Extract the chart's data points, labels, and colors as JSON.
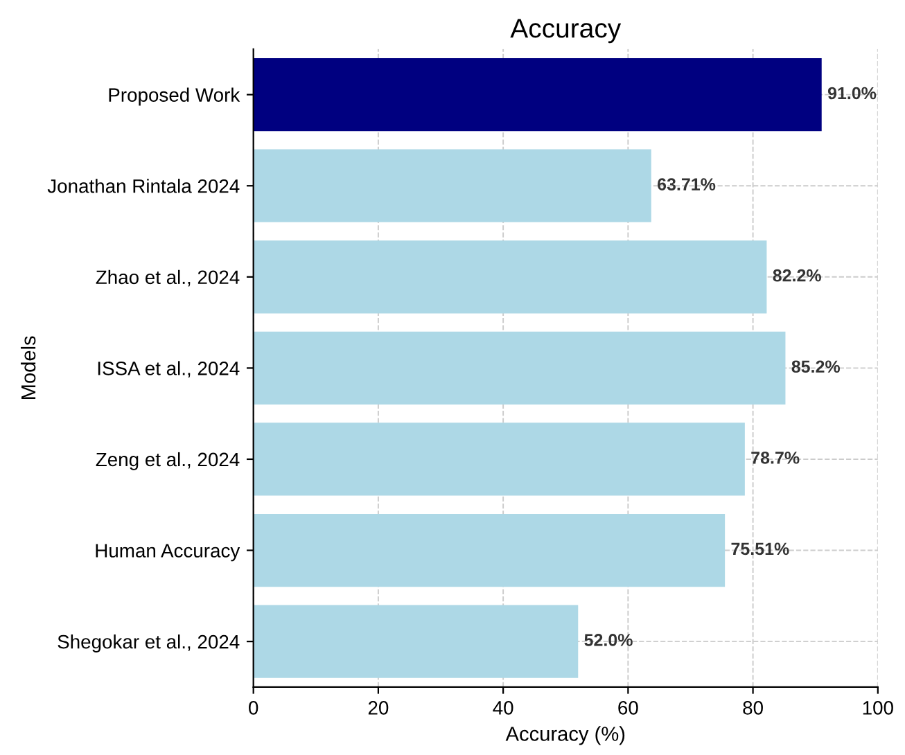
{
  "chart_data": {
    "type": "bar",
    "orientation": "horizontal",
    "title": "Accuracy",
    "xlabel": "Accuracy (%)",
    "ylabel": "Models",
    "categories": [
      "Proposed Work",
      "Jonathan Rintala 2024",
      "Zhao et al., 2024",
      "ISSA et al., 2024",
      "Zeng et al., 2024",
      "Human Accuracy",
      "Shegokar et al., 2024"
    ],
    "values": [
      91.0,
      63.71,
      82.2,
      85.2,
      78.7,
      75.51,
      52.0
    ],
    "colors": [
      "#000080",
      "#add8e6",
      "#add8e6",
      "#add8e6",
      "#add8e6",
      "#add8e6",
      "#add8e6"
    ],
    "value_labels": [
      "91.0%",
      "63.71%",
      "82.2%",
      "85.2%",
      "78.7%",
      "75.51%",
      "52.0%"
    ],
    "xlim": [
      0,
      100
    ],
    "xticks": [
      0,
      20,
      40,
      60,
      80,
      100
    ],
    "grid": true
  }
}
